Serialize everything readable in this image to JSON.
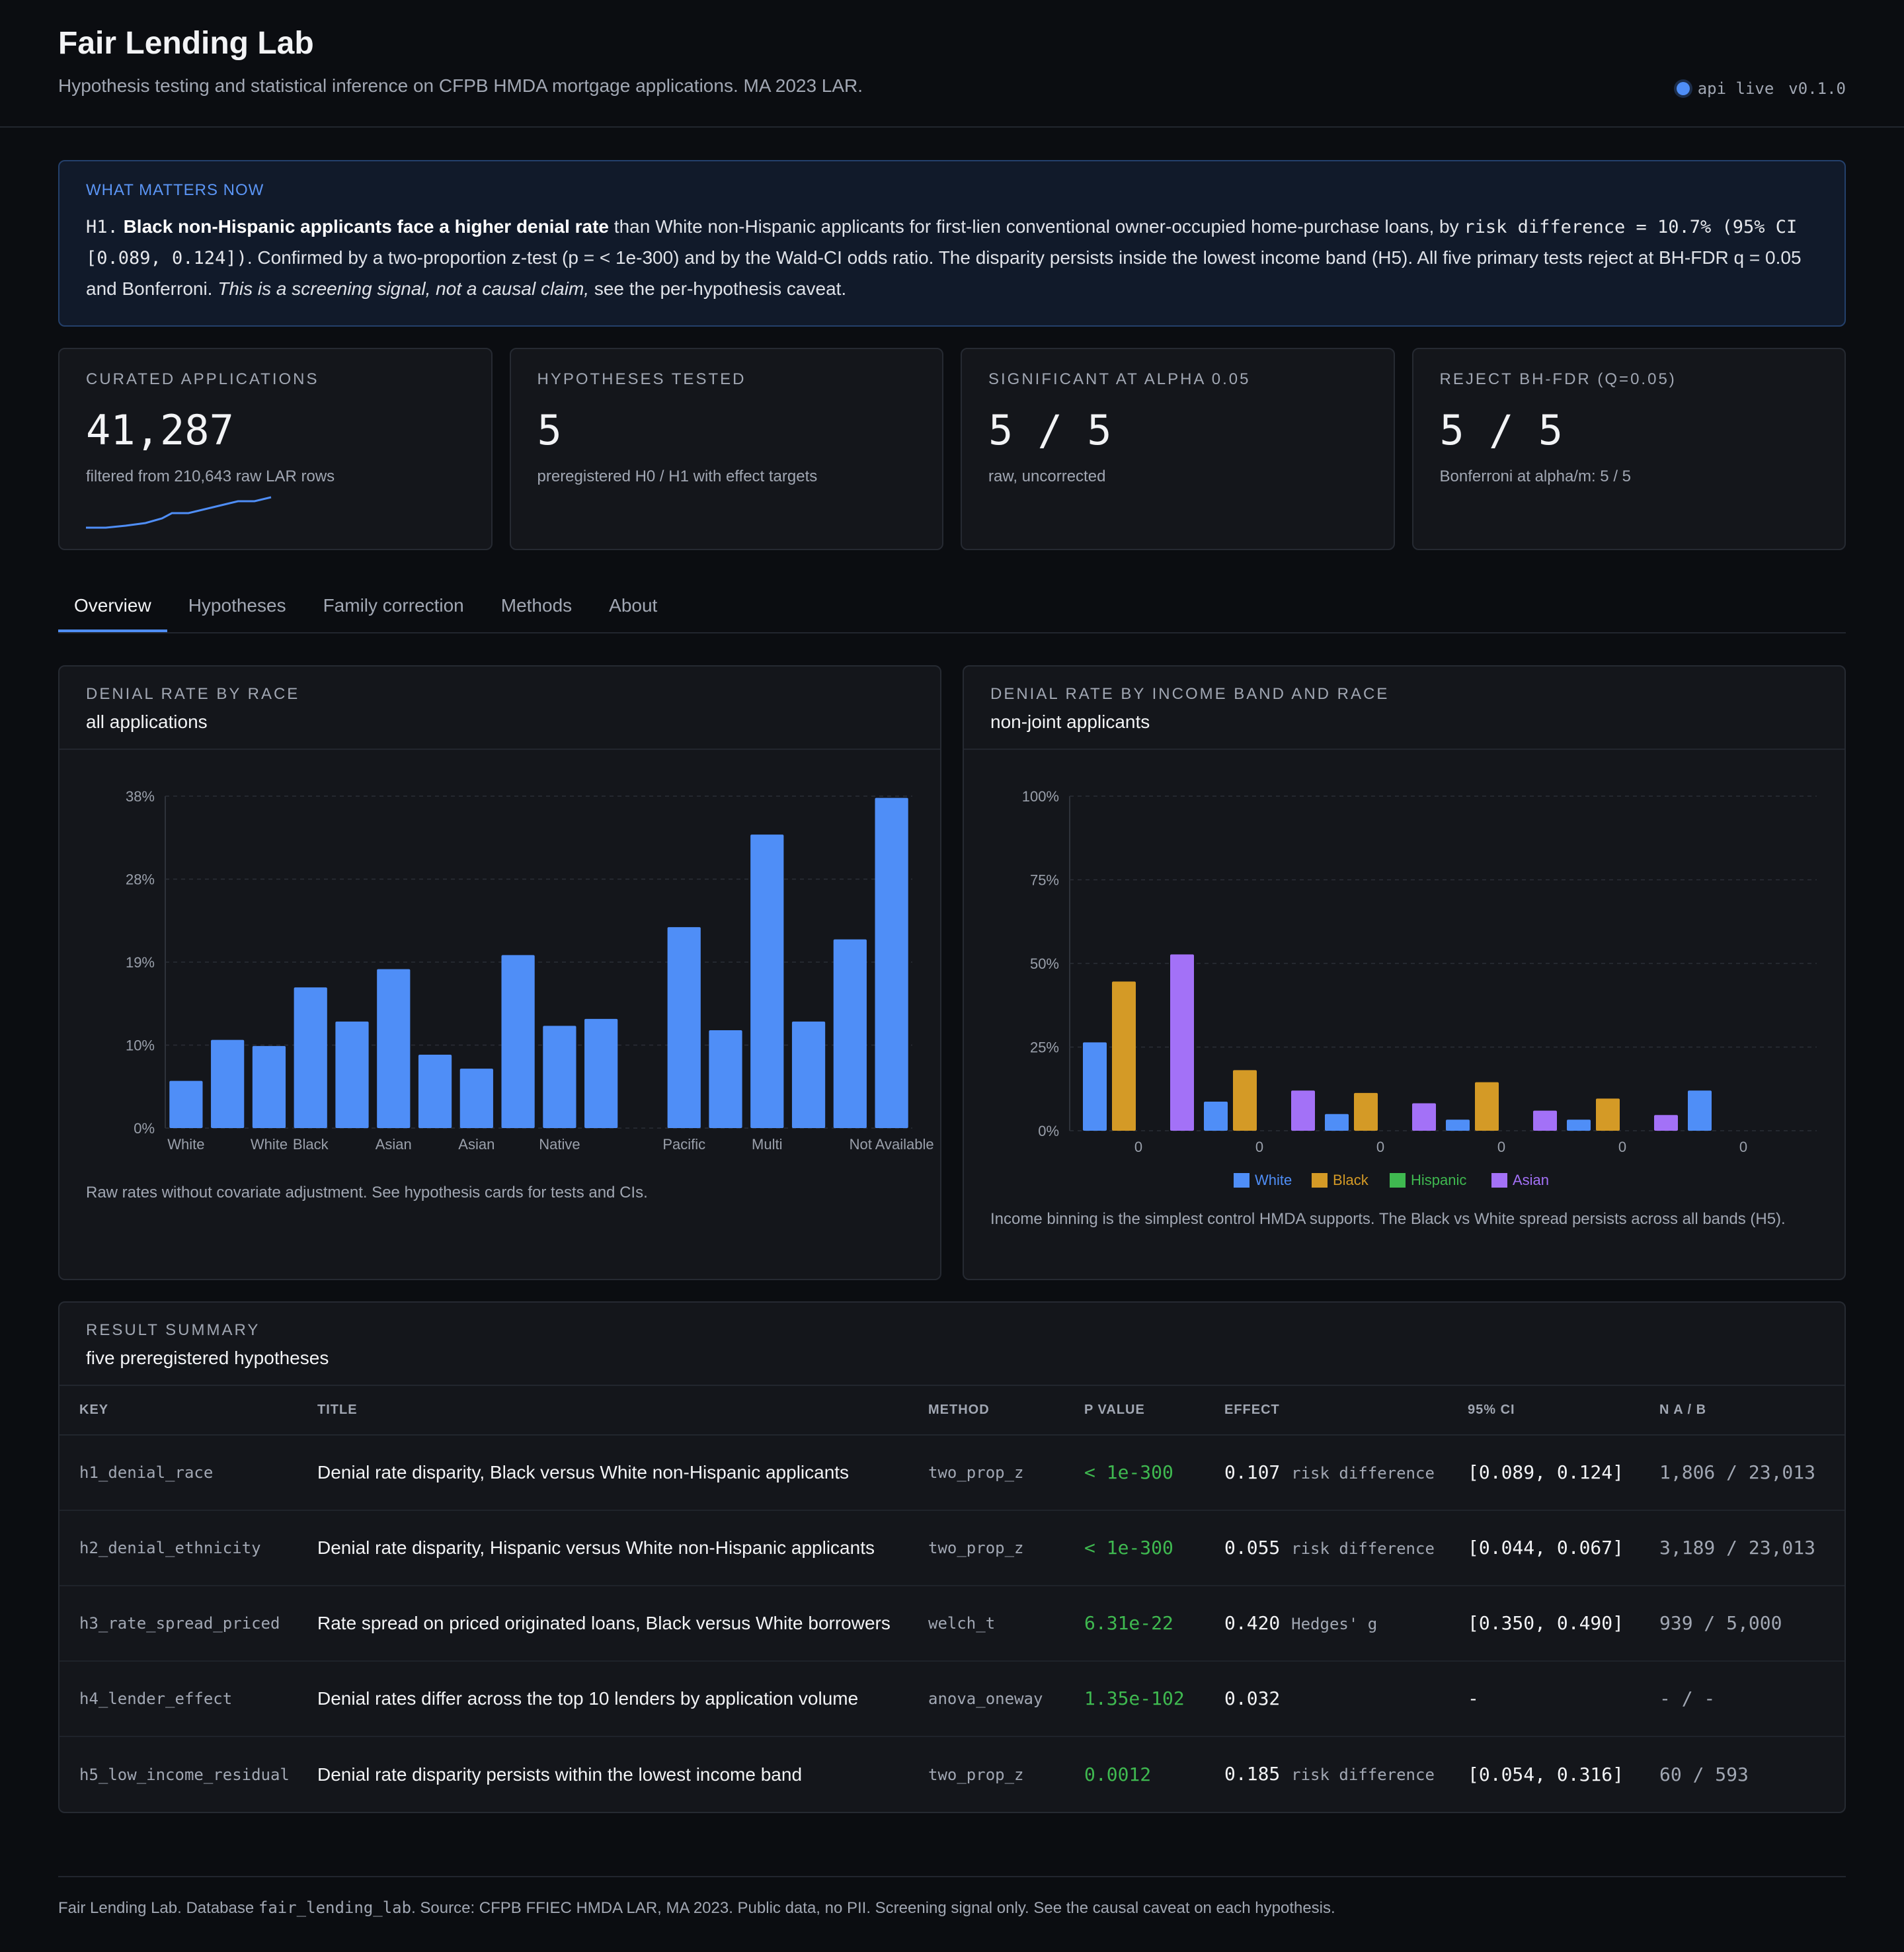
{
  "header": {
    "title": "Fair Lending Lab",
    "subtitle": "Hypothesis testing and statistical inference on CFPB HMDA mortgage applications. MA 2023 LAR.",
    "status_text": "api live",
    "version": "v0.1.0"
  },
  "callout": {
    "label": "WHAT MATTERS NOW",
    "key": "H1.",
    "lead": "Black non-Hispanic applicants face a higher denial rate",
    "text1": " than White non-Hispanic applicants for first-lien conventional owner-occupied home-purchase loans, by ",
    "metric": "risk difference = 10.7% (95% CI [0.089, 0.124])",
    "text2": ". Confirmed by a two-proportion z-test (p = < 1e-300) and by the Wald-CI odds ratio. The disparity persists inside the lowest income band (H5). All five primary tests reject at BH-FDR q = 0.05 and Bonferroni. ",
    "emph": "This is a screening signal, not a causal claim,",
    "text3": " see the per-hypothesis caveat."
  },
  "kpis": [
    {
      "label": "CURATED APPLICATIONS",
      "value": "41,287",
      "sub": "filtered from 210,643 raw LAR rows"
    },
    {
      "label": "HYPOTHESES TESTED",
      "value": "5",
      "sub": "preregistered H0 / H1 with effect targets"
    },
    {
      "label": "SIGNIFICANT AT ALPHA 0.05",
      "value": "5 / 5",
      "sub": "raw, uncorrected"
    },
    {
      "label": "REJECT BH-FDR (Q=0.05)",
      "value": "5 / 5",
      "sub": "Bonferroni at alpha/m: 5 / 5"
    }
  ],
  "colors": {
    "accent": "#4f8ef7",
    "white": "#4f8ef7",
    "black": "#d49a26",
    "hispanic": "#3fb950",
    "asian": "#a371f7",
    "pvalue": "#3fb950"
  },
  "tabs": [
    "Overview",
    "Hypotheses",
    "Family correction",
    "Methods",
    "About"
  ],
  "race_panel": {
    "label": "DENIAL RATE BY RACE",
    "sub": "all applications",
    "note": "Raw rates without covariate adjustment. See hypothesis cards for tests and CIs."
  },
  "income_panel": {
    "label": "DENIAL RATE BY INCOME BAND AND RACE",
    "sub": "non-joint applicants",
    "note": "Income binning is the simplest control HMDA supports. The Black vs White spread persists across all bands (H5)."
  },
  "chart_data": [
    {
      "type": "bar",
      "title": "DENIAL RATE BY RACE",
      "subtitle": "all applications",
      "y_ticks": [
        "0%",
        "10%",
        "19%",
        "28%",
        "38%"
      ],
      "ylim": [
        0,
        38
      ],
      "x_tick_labels": [
        {
          "index": 0,
          "text": "White"
        },
        {
          "index": 2,
          "text": "White"
        },
        {
          "index": 3,
          "text": "Black"
        },
        {
          "index": 5,
          "text": "Asian"
        },
        {
          "index": 7,
          "text": "Asian"
        },
        {
          "index": 9,
          "text": "Native"
        },
        {
          "index": 12,
          "text": "Pacific"
        },
        {
          "index": 14,
          "text": "Multi"
        },
        {
          "index": 17,
          "text": "Not Available"
        }
      ],
      "values": [
        5.4,
        10.1,
        9.4,
        16.1,
        12.2,
        18.2,
        8.4,
        6.8,
        19.8,
        11.7,
        12.5,
        0,
        23.0,
        11.2,
        33.6,
        12.2,
        21.6,
        37.8
      ],
      "grid": true
    },
    {
      "type": "bar",
      "title": "DENIAL RATE BY INCOME BAND AND RACE",
      "subtitle": "non-joint applicants",
      "y_ticks": [
        "0%",
        "25%",
        "50%",
        "75%",
        "100%"
      ],
      "ylim": [
        0,
        100
      ],
      "x_tick_labels": [
        "0",
        "0",
        "0",
        "0",
        "0",
        "0"
      ],
      "legend": [
        "White",
        "Black",
        "Hispanic",
        "Asian"
      ],
      "legend_position": "bottom",
      "series": [
        {
          "name": "White",
          "values": [
            26.4,
            8.7,
            5.0,
            3.3,
            3.3,
            12.0
          ]
        },
        {
          "name": "Black",
          "values": [
            44.6,
            18.1,
            11.3,
            14.5,
            9.6,
            null
          ]
        },
        {
          "name": "Hispanic",
          "values": [
            null,
            null,
            null,
            null,
            null,
            null
          ]
        },
        {
          "name": "Asian",
          "values": [
            52.7,
            12.0,
            8.2,
            6.0,
            4.7,
            null
          ]
        }
      ],
      "grid": true
    }
  ],
  "summary": {
    "label": "RESULT SUMMARY",
    "sub": "five preregistered hypotheses",
    "columns": [
      "KEY",
      "TITLE",
      "METHOD",
      "P VALUE",
      "EFFECT",
      "95% CI",
      "N A / B"
    ],
    "rows": [
      {
        "key": "h1_denial_race",
        "title": "Denial rate disparity, Black versus White non-Hispanic applicants",
        "method": "two_prop_z",
        "p": "< 1e-300",
        "effect": "0.107",
        "unit": "risk difference",
        "ci": "[0.089, 0.124]",
        "n": "1,806 / 23,013"
      },
      {
        "key": "h2_denial_ethnicity",
        "title": "Denial rate disparity, Hispanic versus White non-Hispanic applicants",
        "method": "two_prop_z",
        "p": "< 1e-300",
        "effect": "0.055",
        "unit": "risk difference",
        "ci": "[0.044, 0.067]",
        "n": "3,189 / 23,013"
      },
      {
        "key": "h3_rate_spread_priced",
        "title": "Rate spread on priced originated loans, Black versus White borrowers",
        "method": "welch_t",
        "p": "6.31e-22",
        "effect": "0.420",
        "unit": "Hedges' g",
        "ci": "[0.350, 0.490]",
        "n": "939 / 5,000"
      },
      {
        "key": "h4_lender_effect",
        "title": "Denial rates differ across the top 10 lenders by application volume",
        "method": "anova_oneway",
        "p": "1.35e-102",
        "effect": "0.032",
        "unit": "",
        "ci": "-",
        "n": "- / -"
      },
      {
        "key": "h5_low_income_residual",
        "title": "Denial rate disparity persists within the lowest income band",
        "method": "two_prop_z",
        "p": "0.0012",
        "effect": "0.185",
        "unit": "risk difference",
        "ci": "[0.054, 0.316]",
        "n": "60 / 593"
      }
    ]
  },
  "footer": {
    "prefix": "Fair Lending Lab. Database ",
    "db": "fair_lending_lab",
    "suffix": ". Source: CFPB FFIEC HMDA LAR, MA 2023. Public data, no PII. Screening signal only. See the causal caveat on each hypothesis."
  }
}
